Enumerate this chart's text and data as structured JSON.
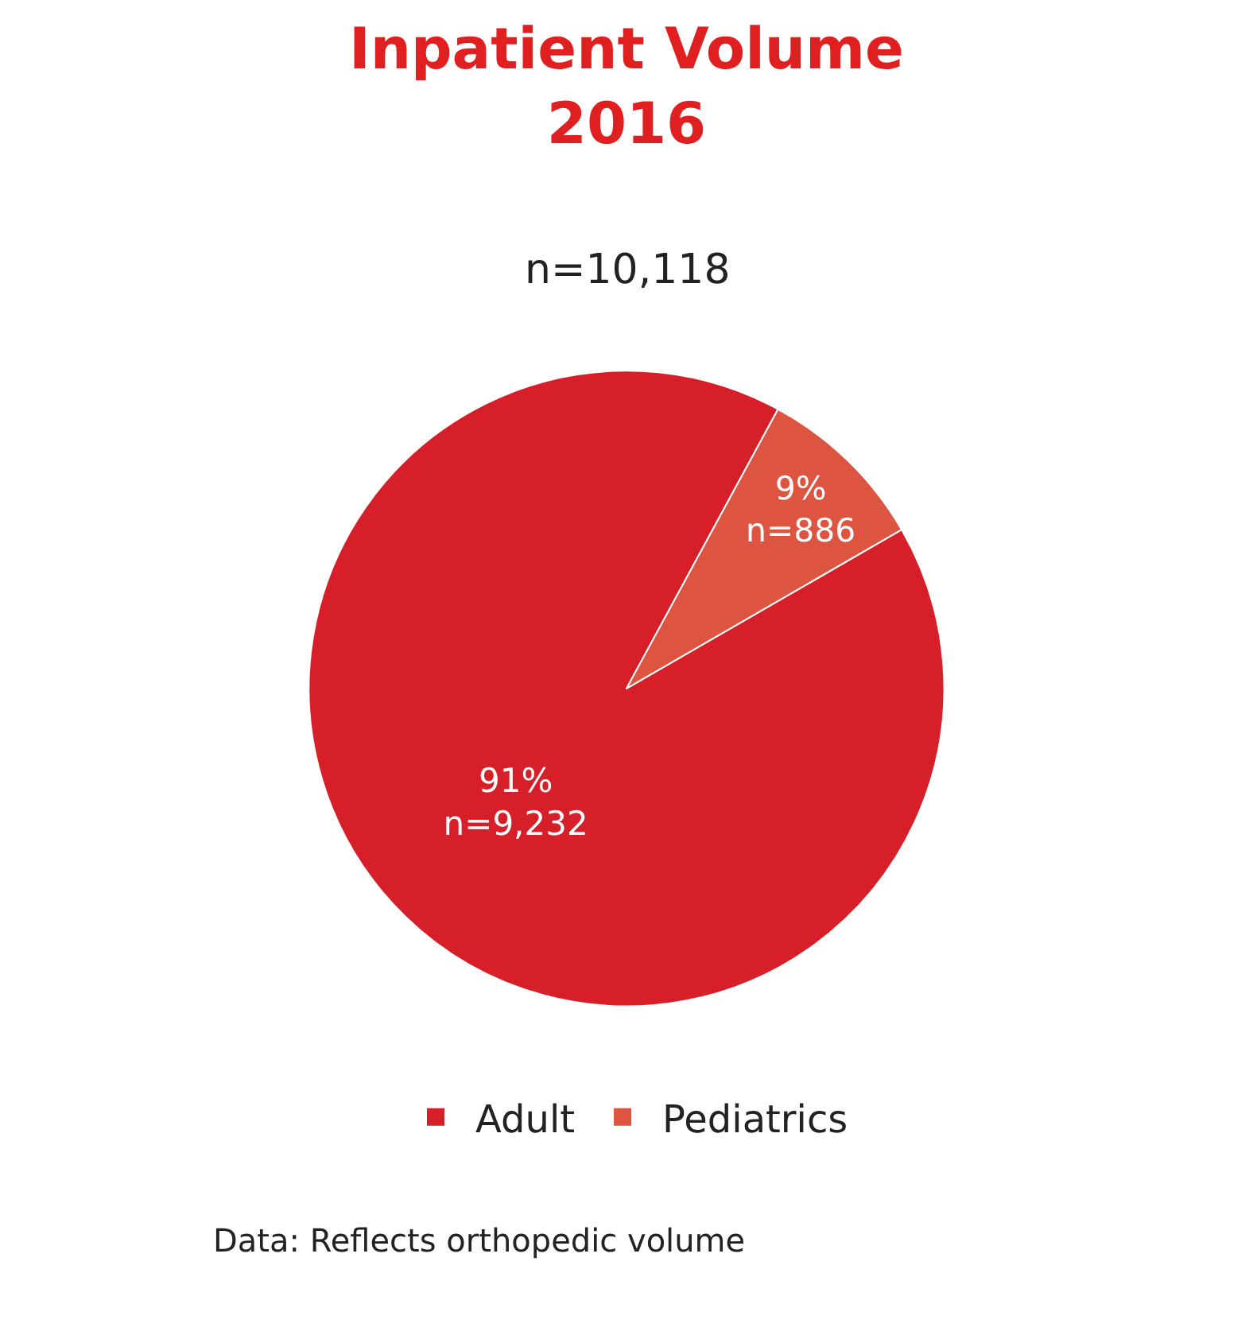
{
  "chart_data": {
    "type": "pie",
    "title": "Inpatient Volume\n2016",
    "subtitle": "n=10,118",
    "categories": [
      "Adult",
      "Pediatrics"
    ],
    "values": [
      9232,
      886
    ],
    "colors": [
      "#d61f28",
      "#dd5540"
    ],
    "value_labels": [
      "91%\nn=9,232",
      "9%\nn=886"
    ],
    "legend": "bottom",
    "annotations": [
      "Data: Reflects orthopedic volume"
    ]
  }
}
